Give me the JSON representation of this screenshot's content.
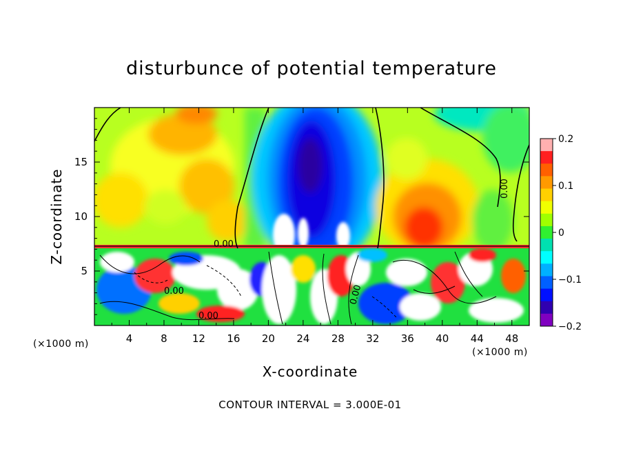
{
  "chart_data": {
    "type": "heatmap",
    "title": "disturbunce of potential temperature",
    "xlabel": "X-coordinate",
    "ylabel": "Z-coordinate",
    "x_unit": "(×1000 m)",
    "y_unit": "(×1000 m)",
    "xlim": [
      0,
      50
    ],
    "ylim": [
      0,
      20
    ],
    "x_ticks": [
      4,
      8,
      12,
      16,
      20,
      24,
      28,
      32,
      36,
      40,
      44,
      48
    ],
    "y_ticks": [
      5,
      10,
      15
    ],
    "colorbar": {
      "range": [
        -0.2,
        0.2
      ],
      "tick_values": [
        0.2,
        0.1,
        0,
        -0.1,
        -0.2
      ],
      "tick_labels": [
        "0.2",
        "0.1",
        "0",
        "−0.1",
        "−0.2"
      ],
      "colors": [
        "#ffb0b0",
        "#ff2020",
        "#ff6000",
        "#ff9a00",
        "#ffd000",
        "#f0ff00",
        "#a0ff00",
        "#30f030",
        "#00e0b0",
        "#00ffff",
        "#00b0ff",
        "#0060ff",
        "#0010ff",
        "#3000b0",
        "#8000c0"
      ]
    },
    "contour_labels": [
      "0.00",
      "0.00",
      "0.00",
      "0.00",
      "0.00"
    ],
    "footnote": "CONTOUR INTERVAL = 3.000E-01"
  }
}
